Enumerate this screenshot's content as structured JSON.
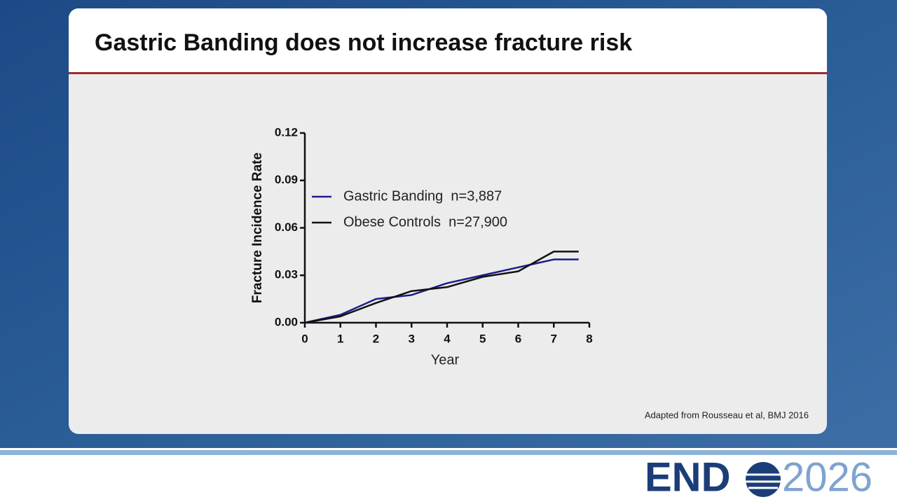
{
  "slide": {
    "title": "Gastric Banding does not increase fracture risk",
    "source": "Adapted from Rousseau et al, BMJ 2016",
    "logo": {
      "left": "END",
      "right": "2026"
    }
  },
  "chart_data": {
    "type": "line",
    "x": [
      0,
      1,
      2,
      3,
      4,
      5,
      6,
      7,
      7.7
    ],
    "series": [
      {
        "name": "Gastric Banding  n=3,887",
        "color": "#1c1c8c",
        "values": [
          0,
          0.005,
          0.015,
          0.0175,
          0.025,
          0.03,
          0.035,
          0.04,
          0.04
        ]
      },
      {
        "name": "Obese Controls  n=27,900",
        "color": "#111111",
        "values": [
          0,
          0.004,
          0.0125,
          0.02,
          0.0225,
          0.029,
          0.0325,
          0.045,
          0.045
        ]
      }
    ],
    "x_label": "Year",
    "y_label": "Fracture Incidence Rate",
    "xlim": [
      0,
      8
    ],
    "xticks": [
      0,
      1,
      2,
      3,
      4,
      5,
      6,
      7,
      8
    ],
    "ylim": [
      0,
      0.12
    ],
    "yticks": [
      {
        "value": 0,
        "label": "0.00"
      },
      0.03,
      0.06,
      0.09,
      0.12
    ],
    "legend": "upper left",
    "grid": false
  }
}
